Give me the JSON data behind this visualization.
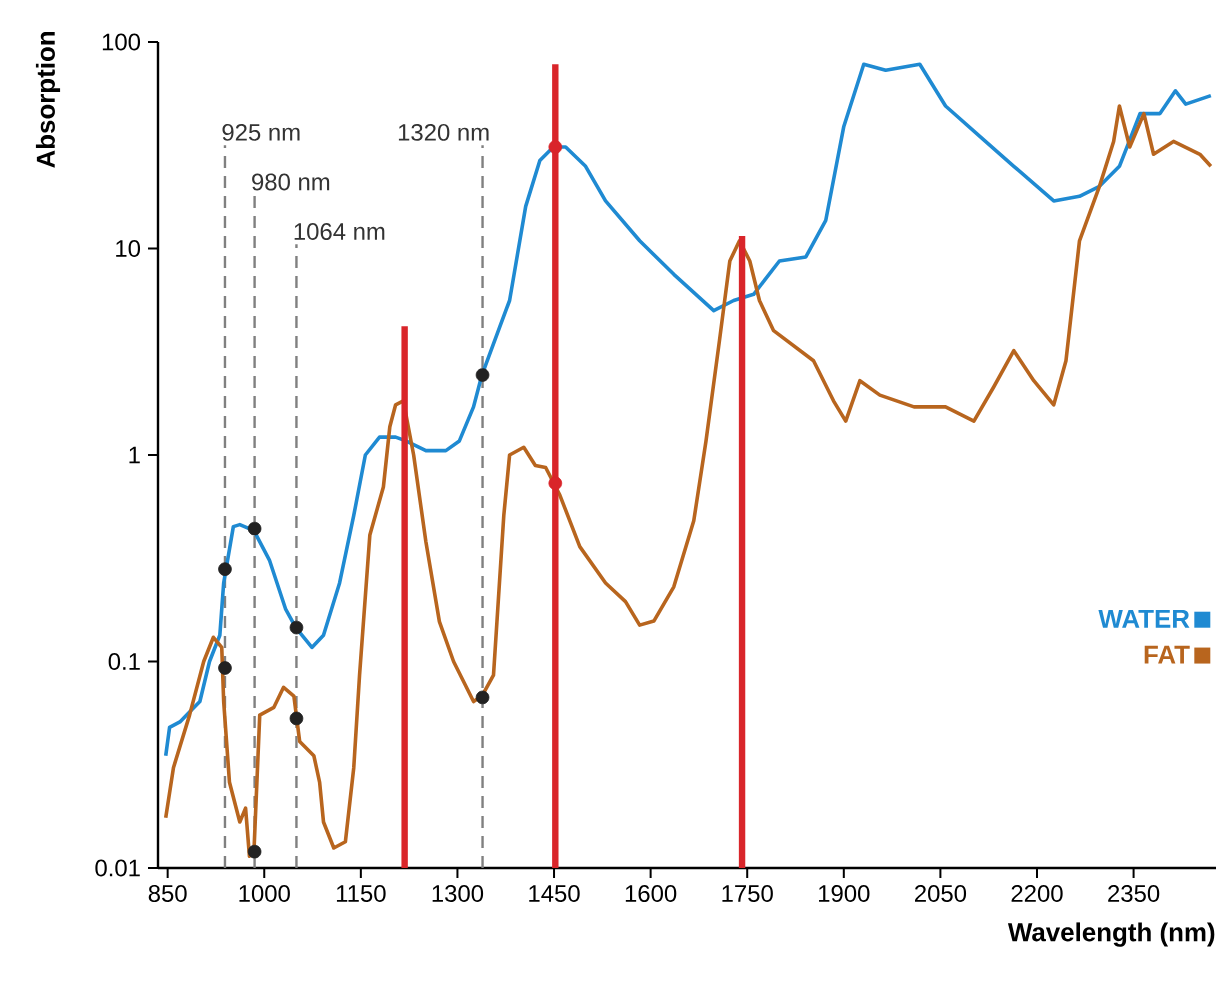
{
  "chart_data": {
    "type": "line",
    "xlabel": "Wavelength (nm)",
    "ylabel": "Absorption",
    "log": "y",
    "xlim": [
      835,
      2478
    ],
    "ylim": [
      0.01,
      100
    ],
    "xticks": [
      850,
      1000,
      1150,
      1300,
      1450,
      1600,
      1750,
      1900,
      2050,
      2200,
      2350
    ],
    "yticks": [
      0.01,
      0.1,
      1,
      10,
      100
    ],
    "grid": false,
    "legend": "right",
    "marker": "none",
    "line_style": "solid",
    "series": [
      {
        "name": "WATER",
        "color": "#1f8ad2",
        "x": [
          847,
          853,
          869,
          884,
          900,
          915,
          931,
          937,
          952,
          962,
          984,
          1008,
          1033,
          1049,
          1074,
          1092,
          1117,
          1139,
          1157,
          1179,
          1204,
          1220,
          1251,
          1282,
          1303,
          1325,
          1338,
          1366,
          1381,
          1406,
          1428,
          1449,
          1468,
          1499,
          1530,
          1583,
          1636,
          1698,
          1729,
          1760,
          1800,
          1841,
          1872,
          1900,
          1931,
          1965,
          2018,
          2058,
          2120,
          2164,
          2226,
          2266,
          2297,
          2328,
          2360,
          2391,
          2415,
          2431,
          2470
        ],
        "values": [
          0.035,
          0.048,
          0.051,
          0.057,
          0.064,
          0.1,
          0.134,
          0.24,
          0.45,
          0.46,
          0.43,
          0.31,
          0.18,
          0.146,
          0.117,
          0.134,
          0.24,
          0.51,
          1.0,
          1.22,
          1.22,
          1.17,
          1.05,
          1.05,
          1.17,
          1.71,
          2.44,
          4.2,
          5.6,
          16,
          26.7,
          31,
          31,
          25,
          17,
          10.9,
          7.5,
          5.0,
          5.6,
          6.0,
          8.7,
          9.1,
          13.7,
          39,
          78,
          73,
          78,
          49,
          33,
          25,
          17,
          17.9,
          20,
          25,
          45,
          45,
          58,
          50,
          55
        ]
      },
      {
        "name": "FAT",
        "color": "#b8651e",
        "x": [
          847,
          859,
          884,
          906,
          921,
          934,
          937,
          946,
          962,
          971,
          977,
          984,
          993,
          1015,
          1030,
          1046,
          1055,
          1077,
          1086,
          1092,
          1108,
          1126,
          1139,
          1148,
          1164,
          1185,
          1195,
          1204,
          1216,
          1232,
          1251,
          1272,
          1294,
          1325,
          1338,
          1356,
          1372,
          1381,
          1403,
          1421,
          1437,
          1459,
          1490,
          1530,
          1561,
          1583,
          1605,
          1636,
          1667,
          1686,
          1707,
          1723,
          1738,
          1754,
          1769,
          1791,
          1853,
          1884,
          1903,
          1925,
          1956,
          2009,
          2058,
          2102,
          2133,
          2164,
          2195,
          2226,
          2245,
          2266,
          2297,
          2319,
          2328,
          2344,
          2366,
          2381,
          2412,
          2453,
          2470
        ],
        "values": [
          0.0175,
          0.0306,
          0.055,
          0.1,
          0.131,
          0.117,
          0.064,
          0.026,
          0.0167,
          0.0195,
          0.0114,
          0.012,
          0.055,
          0.06,
          0.075,
          0.068,
          0.041,
          0.035,
          0.026,
          0.0167,
          0.0125,
          0.0134,
          0.0306,
          0.086,
          0.41,
          0.7,
          1.37,
          1.75,
          1.83,
          1.0,
          0.38,
          0.156,
          0.1,
          0.064,
          0.068,
          0.086,
          0.51,
          1.0,
          1.09,
          0.89,
          0.87,
          0.64,
          0.36,
          0.24,
          0.195,
          0.15,
          0.157,
          0.23,
          0.48,
          1.17,
          3.6,
          8.7,
          10.9,
          8.7,
          5.6,
          4.0,
          2.86,
          1.83,
          1.46,
          2.29,
          1.95,
          1.71,
          1.71,
          1.46,
          2.14,
          3.2,
          2.29,
          1.75,
          2.86,
          10.9,
          20,
          33,
          49,
          31,
          45,
          28.6,
          33,
          28.6,
          25
        ]
      },
      {
        "color": "#d9252a",
        "x": [
          1218,
          1218
        ],
        "values": [
          0.01,
          4.2
        ]
      },
      {
        "color": "#d9252a",
        "x": [
          1452,
          1452
        ],
        "values": [
          0.01,
          78
        ]
      },
      {
        "color": "#d9252a",
        "x": [
          1742,
          1742
        ],
        "values": [
          0.01,
          11.5
        ]
      },
      {
        "type": "scatter",
        "color": "#222222",
        "marker": "circle",
        "x": [
          939,
          939,
          985,
          985,
          1050,
          1050,
          1339,
          1339
        ],
        "values": [
          0.28,
          0.093,
          0.44,
          0.012,
          0.146,
          0.053,
          2.44,
          0.067
        ]
      },
      {
        "type": "scatter",
        "color": "#d9252a",
        "marker": "circle",
        "x": [
          1452,
          1452
        ],
        "values": [
          31,
          0.73
        ]
      }
    ],
    "ref_lines": [
      {
        "axis": "x",
        "value": 939,
        "label": "925 nm",
        "color": "#808080",
        "line_style": "dashed"
      },
      {
        "axis": "x",
        "value": 985,
        "label": "980 nm",
        "color": "#808080",
        "line_style": "dashed"
      },
      {
        "axis": "x",
        "value": 1050,
        "label": "1064 nm",
        "color": "#808080",
        "line_style": "dashed"
      },
      {
        "axis": "x",
        "value": 1339,
        "label": "1320 nm",
        "color": "#808080",
        "line_style": "dashed"
      }
    ]
  }
}
